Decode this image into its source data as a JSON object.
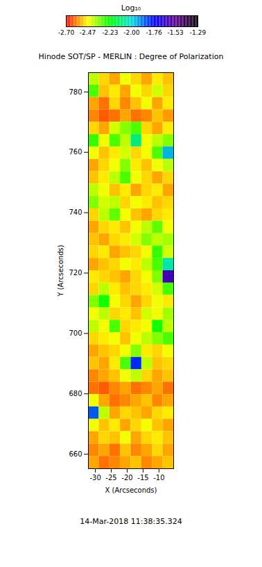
{
  "chart_data": {
    "type": "heatmap",
    "title": "Hinode SOT/SP - MERLIN : Degree of Polarization",
    "x_label": "X (Arcseconds)",
    "y_label": "Y (Arcseconds)",
    "xlim": [
      -32.2,
      -5.4
    ],
    "xticks": [
      -30,
      -25,
      -20,
      -15,
      -10
    ],
    "ylim": [
      655.2,
      786.4
    ],
    "yticks": [
      660,
      680,
      700,
      720,
      740,
      760,
      780
    ],
    "annotation": "14-Mar-2018 11:38:35.324",
    "x_edges": [
      -32.2,
      -28.85,
      -25.5,
      -22.15,
      -18.8,
      -15.45,
      -12.1,
      -8.75,
      -5.4
    ],
    "y_edges": [
      786.4,
      782.3,
      778.2,
      774.1,
      770.0,
      765.9,
      761.8,
      757.7,
      753.6,
      749.5,
      745.4,
      741.3,
      737.2,
      733.1,
      729.0,
      724.9,
      720.8,
      716.7,
      712.6,
      708.5,
      704.4,
      700.3,
      696.2,
      692.1,
      688.0,
      683.9,
      679.8,
      675.7,
      671.6,
      667.5,
      663.4,
      659.3,
      655.2
    ],
    "values": [
      [
        -2.4,
        -2.5,
        -2.55,
        -2.45,
        -2.5,
        -2.55,
        -2.48,
        -2.52
      ],
      [
        -2.3,
        -2.52,
        -2.48,
        -2.55,
        -2.45,
        -2.5,
        -2.42,
        -2.5
      ],
      [
        -2.55,
        -2.6,
        -2.5,
        -2.58,
        -2.52,
        -2.45,
        -2.55,
        -2.48
      ],
      [
        -2.58,
        -2.62,
        -2.6,
        -2.55,
        -2.6,
        -2.58,
        -2.52,
        -2.56
      ],
      [
        -2.5,
        -2.55,
        -2.42,
        -2.35,
        -2.3,
        -2.5,
        -2.55,
        -2.48
      ],
      [
        -2.28,
        -2.45,
        -2.3,
        -2.4,
        -2.1,
        -2.45,
        -2.4,
        -2.35
      ],
      [
        -2.45,
        -2.52,
        -2.48,
        -2.42,
        -2.5,
        -2.45,
        -2.3,
        -1.95
      ],
      [
        -2.55,
        -2.5,
        -2.45,
        -2.35,
        -2.48,
        -2.52,
        -2.45,
        -2.4
      ],
      [
        -2.52,
        -2.48,
        -2.4,
        -2.3,
        -2.45,
        -2.5,
        -2.55,
        -2.5
      ],
      [
        -2.4,
        -2.45,
        -2.52,
        -2.48,
        -2.55,
        -2.5,
        -2.48,
        -2.55
      ],
      [
        -2.35,
        -2.42,
        -2.4,
        -2.5,
        -2.45,
        -2.48,
        -2.52,
        -2.5
      ],
      [
        -2.5,
        -2.4,
        -2.32,
        -2.45,
        -2.52,
        -2.55,
        -2.5,
        -2.48
      ],
      [
        -2.55,
        -2.5,
        -2.48,
        -2.52,
        -2.45,
        -2.4,
        -2.32,
        -2.45
      ],
      [
        -2.52,
        -2.55,
        -2.5,
        -2.48,
        -2.42,
        -2.35,
        -2.4,
        -2.38
      ],
      [
        -2.5,
        -2.48,
        -2.55,
        -2.52,
        -2.5,
        -2.45,
        -2.28,
        -2.42
      ],
      [
        -2.55,
        -2.52,
        -2.5,
        -2.45,
        -2.48,
        -2.4,
        -2.3,
        -2.05
      ],
      [
        -2.48,
        -2.5,
        -2.52,
        -2.55,
        -2.5,
        -2.45,
        -2.35,
        -1.6
      ],
      [
        -2.5,
        -2.4,
        -2.48,
        -2.52,
        -2.5,
        -2.48,
        -2.42,
        -2.3
      ],
      [
        -2.35,
        -2.25,
        -2.45,
        -2.5,
        -2.55,
        -2.5,
        -2.45,
        -2.48
      ],
      [
        -2.45,
        -2.4,
        -2.5,
        -2.48,
        -2.52,
        -2.42,
        -2.45,
        -2.38
      ],
      [
        -2.4,
        -2.45,
        -2.3,
        -2.5,
        -2.48,
        -2.45,
        -2.25,
        -2.4
      ],
      [
        -2.5,
        -2.48,
        -2.45,
        -2.52,
        -2.45,
        -2.4,
        -2.35,
        -2.3
      ],
      [
        -2.55,
        -2.52,
        -2.5,
        -2.45,
        -2.35,
        -2.48,
        -2.5,
        -2.45
      ],
      [
        -2.52,
        -2.55,
        -2.48,
        -2.3,
        -1.8,
        -2.4,
        -2.52,
        -2.5
      ],
      [
        -2.58,
        -2.55,
        -2.52,
        -2.45,
        -2.4,
        -2.5,
        -2.55,
        -2.52
      ],
      [
        -2.6,
        -2.62,
        -2.58,
        -2.55,
        -2.6,
        -2.58,
        -2.55,
        -2.6
      ],
      [
        -2.45,
        -2.55,
        -2.6,
        -2.58,
        -2.55,
        -2.52,
        -2.58,
        -2.55
      ],
      [
        -1.85,
        -2.4,
        -2.55,
        -2.5,
        -2.52,
        -2.55,
        -2.5,
        -2.48
      ],
      [
        -2.45,
        -2.52,
        -2.48,
        -2.55,
        -2.5,
        -2.45,
        -2.52,
        -2.55
      ],
      [
        -2.55,
        -2.5,
        -2.52,
        -2.45,
        -2.55,
        -2.5,
        -2.48,
        -2.52
      ],
      [
        -2.58,
        -2.55,
        -2.6,
        -2.52,
        -2.58,
        -2.55,
        -2.5,
        -2.55
      ],
      [
        -2.55,
        -2.6,
        -2.58,
        -2.55,
        -2.52,
        -2.58,
        -2.55,
        -2.52
      ]
    ],
    "colorbar": {
      "label": "Log₁₀",
      "range": [
        -2.7,
        -1.29
      ],
      "ticks": [
        {
          "value": -2.7,
          "label": "-2.70"
        },
        -2.47,
        -2.23,
        {
          "value": -2.0,
          "label": "-2.00"
        },
        -1.76,
        -1.53,
        -1.29
      ]
    }
  }
}
